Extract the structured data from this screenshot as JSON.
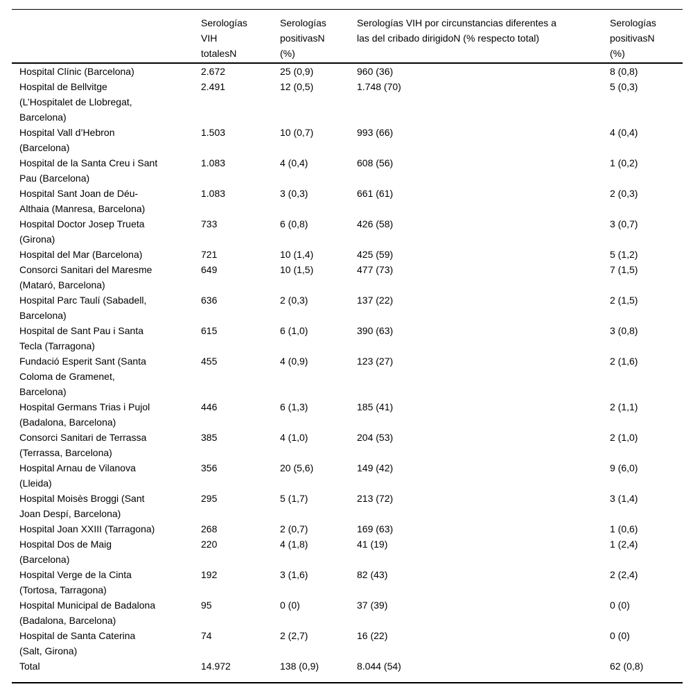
{
  "table": {
    "headers": [
      "",
      "Serologías\nVIH\ntotalesN",
      "Serologías\npositivasN\n(%)",
      "Serologías VIH por circunstancias diferentes a\nlas del cribado dirigidoN (% respecto total)",
      "Serologías\npositivasN\n(%)"
    ],
    "rows": [
      [
        "Hospital Clínic (Barcelona)",
        "2.672",
        "25 (0,9)",
        "960 (36)",
        "8 (0,8)"
      ],
      [
        "Hospital de Bellvitge\n(L’Hospitalet de Llobregat,\nBarcelona)",
        "2.491",
        "12 (0,5)",
        "1.748 (70)",
        "5 (0,3)"
      ],
      [
        "Hospital Vall d’Hebron\n(Barcelona)",
        "1.503",
        "10 (0,7)",
        "993 (66)",
        "4 (0,4)"
      ],
      [
        "Hospital de la Santa Creu i Sant\nPau (Barcelona)",
        "1.083",
        "4 (0,4)",
        "608 (56)",
        "1 (0,2)"
      ],
      [
        "Hospital Sant Joan de Déu-\nAlthaia (Manresa, Barcelona)",
        "1.083",
        "3 (0,3)",
        "661 (61)",
        "2 (0,3)"
      ],
      [
        "Hospital Doctor Josep Trueta\n(Girona)",
        "733",
        "6 (0,8)",
        "426 (58)",
        "3 (0,7)"
      ],
      [
        "Hospital del Mar (Barcelona)",
        "721",
        "10 (1,4)",
        "425 (59)",
        "5 (1,2)"
      ],
      [
        "Consorci Sanitari del Maresme\n(Mataró, Barcelona)",
        "649",
        "10 (1,5)",
        "477 (73)",
        "7 (1,5)"
      ],
      [
        "Hospital Parc Taulí (Sabadell,\nBarcelona)",
        "636",
        "2 (0,3)",
        "137 (22)",
        "2 (1,5)"
      ],
      [
        "Hospital de Sant Pau i Santa\nTecla (Tarragona)",
        "615",
        "6 (1,0)",
        "390 (63)",
        "3 (0,8)"
      ],
      [
        "Fundació Esperit Sant (Santa\nColoma de Gramenet,\nBarcelona)",
        "455",
        "4 (0,9)",
        "123 (27)",
        "2 (1,6)"
      ],
      [
        "Hospital Germans Trias i Pujol\n(Badalona, Barcelona)",
        "446",
        "6 (1,3)",
        "185 (41)",
        "2 (1,1)"
      ],
      [
        "Consorci Sanitari de Terrassa\n(Terrassa, Barcelona)",
        "385",
        "4 (1,0)",
        "204 (53)",
        "2 (1,0)"
      ],
      [
        "Hospital Arnau de Vilanova\n(Lleida)",
        "356",
        "20 (5,6)",
        "149 (42)",
        "9 (6,0)"
      ],
      [
        "Hospital Moisès Broggi (Sant\nJoan Despí, Barcelona)",
        "295",
        "5 (1,7)",
        "213 (72)",
        "3 (1,4)"
      ],
      [
        "Hospital Joan XXIII (Tarragona)",
        "268",
        "2 (0,7)",
        "169 (63)",
        "1 (0,6)"
      ],
      [
        "Hospital Dos de Maig\n(Barcelona)",
        "220",
        "4 (1,8)",
        "41 (19)",
        "1 (2,4)"
      ],
      [
        "Hospital Verge de la Cinta\n(Tortosa, Tarragona)",
        "192",
        "3 (1,6)",
        "82 (43)",
        "2 (2,4)"
      ],
      [
        "Hospital Municipal de Badalona\n(Badalona, Barcelona)",
        "95",
        "0 (0)",
        "37 (39)",
        "0 (0)"
      ],
      [
        "Hospital de Santa Caterina\n(Salt, Girona)",
        "74",
        "2 (2,7)",
        "16 (22)",
        "0 (0)"
      ],
      [
        "Total",
        "14.972",
        "138 (0,9)",
        "8.044 (54)",
        "62 (0,8)"
      ]
    ]
  },
  "colors": {
    "text": "#000000",
    "rule": "#000000",
    "background": "#ffffff"
  }
}
